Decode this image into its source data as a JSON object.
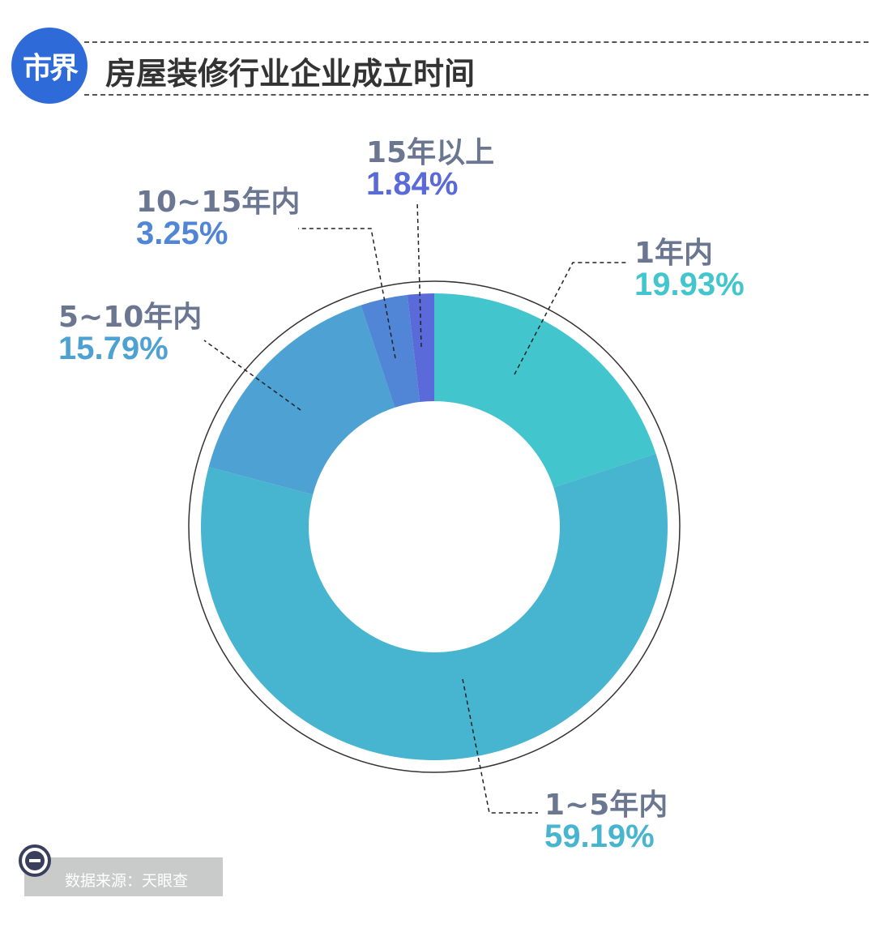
{
  "header": {
    "logo_text": "市界",
    "title": "房屋装修行业企业成立时间"
  },
  "colors": {
    "logo": "#2f6bd8",
    "label_gray": "#6b7791"
  },
  "chart_data": {
    "type": "pie",
    "style": "donut",
    "categories": [
      "1年内",
      "1~5年内",
      "5~10年内",
      "10~15年内",
      "15年以上"
    ],
    "values": [
      19.93,
      59.19,
      15.79,
      3.25,
      1.84
    ],
    "value_labels": [
      "19.93%",
      "59.19%",
      "15.79%",
      "3.25%",
      "1.84%"
    ],
    "colors": [
      "#42c5cc",
      "#47b5d0",
      "#4ea1d3",
      "#5186d6",
      "#5a6ad9"
    ],
    "start_angle": "12 o'clock",
    "direction": "clockwise"
  },
  "footer": {
    "source_text": "数据来源：天眼查"
  }
}
